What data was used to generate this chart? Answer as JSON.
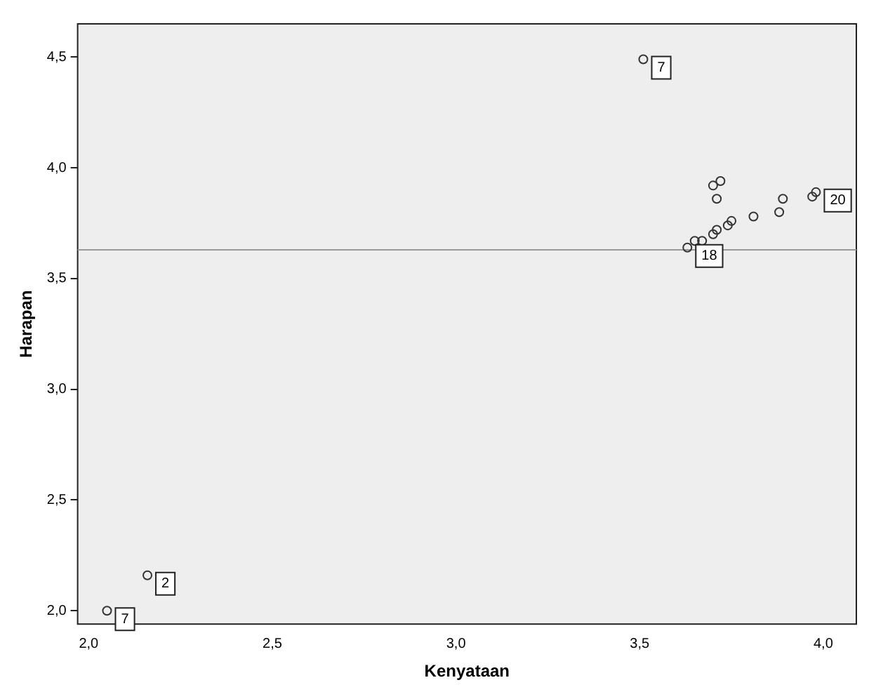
{
  "chart_data": {
    "type": "scatter",
    "xlabel": "Kenyataan",
    "ylabel": "Harapan",
    "xlim": [
      1.97,
      4.09
    ],
    "ylim": [
      1.94,
      4.65
    ],
    "xticks": [
      {
        "value": 2.0,
        "label": "2,0"
      },
      {
        "value": 2.5,
        "label": "2,5"
      },
      {
        "value": 3.0,
        "label": "3,0"
      },
      {
        "value": 3.5,
        "label": "3,5"
      },
      {
        "value": 4.0,
        "label": "4,0"
      }
    ],
    "yticks": [
      {
        "value": 2.0,
        "label": "2,0"
      },
      {
        "value": 2.5,
        "label": "2,5"
      },
      {
        "value": 3.0,
        "label": "3,0"
      },
      {
        "value": 3.5,
        "label": "3,5"
      },
      {
        "value": 4.0,
        "label": "4,0"
      },
      {
        "value": 4.5,
        "label": "4,5"
      }
    ],
    "grid": false,
    "legend": false,
    "marker": "circle",
    "x": [
      2.05,
      2.16,
      3.51,
      3.98,
      3.97,
      3.89,
      3.88,
      3.81,
      3.75,
      3.74,
      3.71,
      3.7,
      3.67,
      3.65,
      3.63,
      3.72,
      3.7,
      3.71
    ],
    "values": [
      2.0,
      2.16,
      4.49,
      3.89,
      3.87,
      3.86,
      3.8,
      3.78,
      3.76,
      3.74,
      3.72,
      3.7,
      3.67,
      3.67,
      3.64,
      3.94,
      3.92,
      3.86
    ],
    "color": "#333333",
    "ref_lines": [
      {
        "axis": "y",
        "value": 3.63,
        "color": "#999999"
      }
    ],
    "annotations": [
      {
        "text": "7",
        "x": 3.51,
        "y": 4.49
      },
      {
        "text": "20",
        "x": 3.98,
        "y": 3.89
      },
      {
        "text": "18",
        "x": 3.63,
        "y": 3.64
      },
      {
        "text": "7",
        "x": 2.05,
        "y": 2.0
      },
      {
        "text": "2",
        "x": 2.16,
        "y": 2.16
      }
    ]
  }
}
